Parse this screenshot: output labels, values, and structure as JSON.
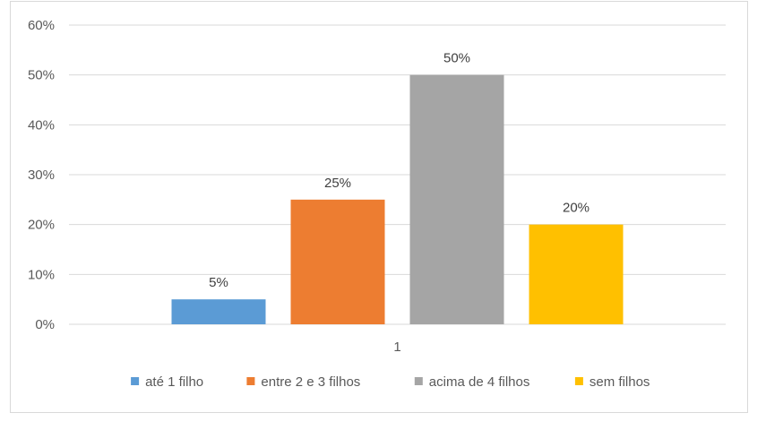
{
  "chart_data": {
    "type": "bar",
    "categories": [
      "1"
    ],
    "series": [
      {
        "name": "até 1 filho",
        "values": [
          5
        ],
        "label": "5%",
        "color": "#5b9bd5"
      },
      {
        "name": "entre 2 e 3 filhos",
        "values": [
          25
        ],
        "label": "25%",
        "color": "#ed7d31"
      },
      {
        "name": "acima de 4 filhos",
        "values": [
          50
        ],
        "label": "50%",
        "color": "#a5a5a5"
      },
      {
        "name": "sem filhos",
        "values": [
          20
        ],
        "label": "20%",
        "color": "#ffc000"
      }
    ],
    "yticks": [
      "0%",
      "10%",
      "20%",
      "30%",
      "40%",
      "50%",
      "60%"
    ],
    "ylim": [
      0,
      60
    ],
    "title": "",
    "xlabel": "",
    "ylabel": "",
    "grid": true,
    "legend_position": "bottom"
  }
}
